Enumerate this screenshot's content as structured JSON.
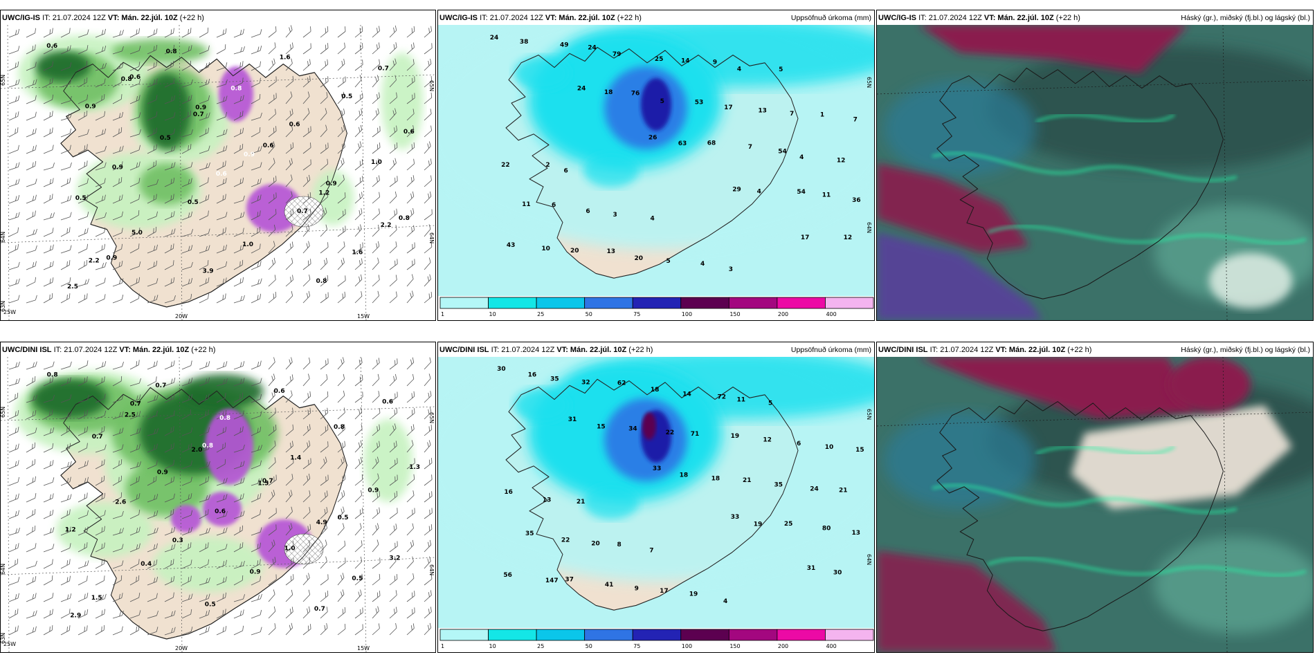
{
  "rows": [
    {
      "model": "UWC/IG-IS",
      "panels": [
        {
          "it_label": "IT: 21.07.2024 12Z",
          "vt_label": "VT: Mán. 22.júl. 10Z",
          "lead": "(+22 h)",
          "right_title": ""
        },
        {
          "it_label": "IT: 21.07.2024 12Z",
          "vt_label": "VT: Mán. 22.júl. 10Z",
          "lead": "(+22 h)",
          "right_title": "Uppsöfnuð úrkoma (mm)"
        },
        {
          "it_label": "IT: 21.07.2024 12Z",
          "vt_label": "VT: Mán. 22.júl. 10Z",
          "lead": "(+22 h)",
          "right_title": "Háský (gr.), miðský (fj.bl.) og lágský (bl.)"
        }
      ],
      "precip_values": [
        "24",
        "24",
        "26",
        "29",
        "17",
        "38",
        "18",
        "63",
        "4",
        "12",
        "49",
        "76",
        "68",
        "54",
        "43",
        "24",
        "5",
        "7",
        "11",
        "10",
        "79",
        "53",
        "54",
        "36",
        "20",
        "25",
        "17",
        "4",
        "11",
        "13",
        "14",
        "13",
        "12",
        "6",
        "20",
        "9",
        "7",
        "22",
        "6",
        "5",
        "4",
        "1",
        "2",
        "3",
        "4",
        "5",
        "7",
        "6",
        "4",
        "3"
      ],
      "rate_values": [
        "0.6",
        "0.8",
        "0.7",
        "0.9",
        "1.2",
        "2.2",
        "2.2",
        "0.8",
        "0.8",
        "0.6",
        "1.0",
        "0.5",
        "5.0",
        "3.9",
        "1.6",
        "0.5",
        "0.6",
        "0.9",
        "0.5",
        "1.0",
        "0.8",
        "0.7",
        "0.9",
        "0.5",
        "0.6",
        "0.7",
        "1.6",
        "2.5",
        "0.6",
        "0.9",
        "0.6",
        "0.9",
        "0.8",
        "0.9"
      ]
    },
    {
      "model": "UWC/DINI ISL",
      "panels": [
        {
          "it_label": "IT: 21.07.2024 12Z",
          "vt_label": "VT: Mán. 22.júl. 10Z",
          "lead": "(+22 h)",
          "right_title": ""
        },
        {
          "it_label": "IT: 21.07.2024 12Z",
          "vt_label": "VT: Mán. 22.júl. 10Z",
          "lead": "(+22 h)",
          "right_title": "Uppsöfnuð úrkoma (mm)"
        },
        {
          "it_label": "IT: 21.07.2024 12Z",
          "vt_label": "VT: Mán. 22.júl. 10Z",
          "lead": "(+22 h)",
          "right_title": "Háský (gr.), miðský (fj.bl.) og lágský (bl.)"
        }
      ],
      "precip_values": [
        "30",
        "31",
        "33",
        "33",
        "31",
        "16",
        "15",
        "18",
        "19",
        "30",
        "35",
        "34",
        "18",
        "25",
        "56",
        "32",
        "22",
        "21",
        "80",
        "147",
        "62",
        "71",
        "35",
        "13",
        "37",
        "18",
        "19",
        "24",
        "35",
        "41",
        "14",
        "12",
        "21",
        "22",
        "9",
        "72",
        "6",
        "16",
        "20",
        "17",
        "11",
        "10",
        "13",
        "8",
        "19",
        "5",
        "15",
        "21",
        "7",
        "4"
      ],
      "rate_values": [
        "0.8",
        "2.5",
        "2.0",
        "1.5",
        "4.9",
        "3.2",
        "1.5",
        "0.7",
        "0.8",
        "1.4",
        "0.9",
        "1.2",
        "0.4",
        "0.5",
        "0.6",
        "0.8",
        "1.3",
        "2.6",
        "0.3",
        "0.9",
        "0.7",
        "0.6",
        "0.7",
        "0.9",
        "0.6",
        "1.0",
        "0.5",
        "2.9",
        "0.7",
        "0.8",
        "0.7",
        "0.5"
      ]
    }
  ],
  "lat_labels": [
    "65N",
    "64N",
    "63N"
  ],
  "lon_labels": [
    "25W",
    "20W",
    "15W"
  ],
  "right_lat_labels": [
    "65N",
    "64N"
  ],
  "colorbar": {
    "ticks": [
      "1",
      "10",
      "25",
      "50",
      "75",
      "100",
      "150",
      "200",
      "400"
    ],
    "colors": [
      "#b4f7f7",
      "#14e6e6",
      "#0bc6ea",
      "#2f74e4",
      "#2323b4",
      "#5c0050",
      "#a3077f",
      "#ec0aa5",
      "#f4b4ef"
    ]
  },
  "colors": {
    "land": "#f0e1d0",
    "wind_green_light": "#c6f2c0",
    "wind_green_mid": "#6fbf63",
    "wind_green_dark": "#1d6a2a",
    "magenta": "#b656d6",
    "precip_base": "#b7f4f4",
    "precip_cyan": "#1ee0ee",
    "precip_blue": "#2b7fe6",
    "precip_navy": "#1c1fa8",
    "cloud_teal": "#3b7168",
    "cloud_dark": "#2b4e4a",
    "cloud_blue": "#2a7b97",
    "cloud_crimson": "#8a1d4d",
    "cloud_edge": "#27f0a3"
  },
  "icons": [
    "wind-barb-icon",
    "hatch-pattern"
  ]
}
